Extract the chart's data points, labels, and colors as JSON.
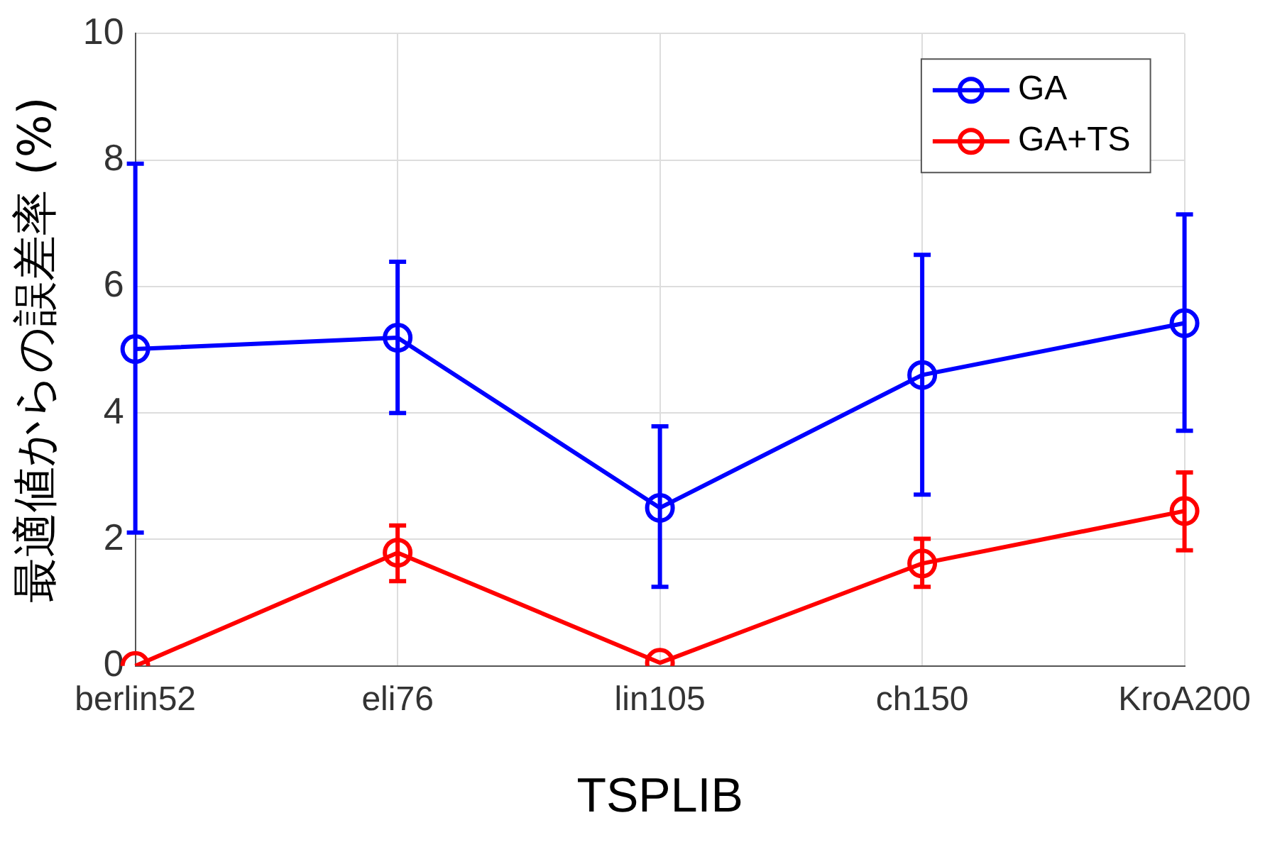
{
  "chart_data": {
    "type": "line",
    "xlabel": "TSPLIB",
    "ylabel": "最適値からの誤差率 (%)",
    "categories": [
      "berlin52",
      "eli76",
      "lin105",
      "ch150",
      "KroA200"
    ],
    "series": [
      {
        "name": "GA",
        "color": "#0000ff",
        "values": [
          5.01,
          5.19,
          2.5,
          4.6,
          5.42
        ],
        "errors": [
          [
            2.11,
            7.94
          ],
          [
            4.0,
            6.39
          ],
          [
            1.25,
            3.79
          ],
          [
            2.71,
            6.5
          ],
          [
            3.72,
            7.14
          ]
        ]
      },
      {
        "name": "GA+TS",
        "color": "#ff0000",
        "values": [
          0,
          1.79,
          0.05,
          1.62,
          2.45
        ],
        "errors": [
          null,
          [
            1.34,
            2.22
          ],
          null,
          [
            1.25,
            2.01
          ],
          [
            1.83,
            3.06
          ]
        ]
      }
    ],
    "ylim": [
      0,
      10
    ],
    "yticks": [
      0,
      2,
      4,
      6,
      8,
      10
    ],
    "grid": true,
    "legend": "top right",
    "marker": "circle",
    "line_style": "solid"
  }
}
